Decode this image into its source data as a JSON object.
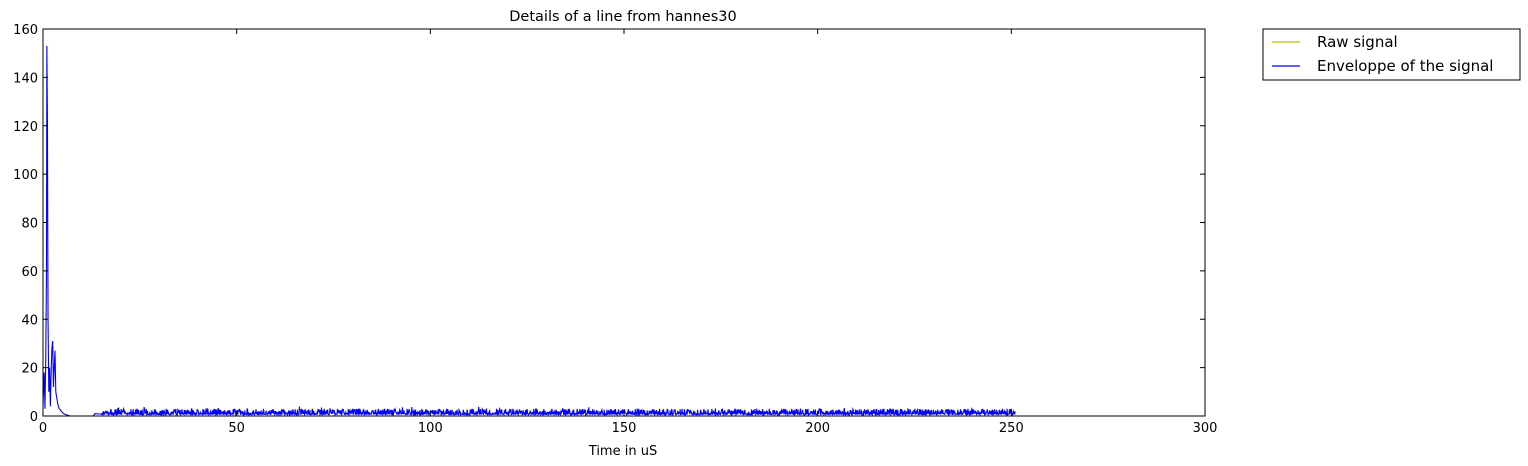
{
  "chart_data": {
    "type": "line",
    "title": "Details of a line from hannes30",
    "xlabel": "Time in uS",
    "ylabel": "",
    "xlim": [
      0,
      300
    ],
    "ylim": [
      0,
      160
    ],
    "x_ticks": [
      0,
      50,
      100,
      150,
      200,
      250,
      300
    ],
    "y_ticks": [
      0,
      20,
      40,
      60,
      80,
      100,
      120,
      140,
      160
    ],
    "grid": false,
    "legend_position": "outside-top-right",
    "series": [
      {
        "name": "Raw signal",
        "color": "#bfbf00",
        "points": [
          [
            0,
            0
          ],
          [
            300,
            0
          ]
        ]
      },
      {
        "name": "Enveloppe of the signal",
        "color": "#0000ff",
        "points": [
          [
            0.0,
            5
          ],
          [
            0.3,
            18
          ],
          [
            0.5,
            3
          ],
          [
            0.7,
            22
          ],
          [
            0.9,
            60
          ],
          [
            1.0,
            153
          ],
          [
            1.15,
            120
          ],
          [
            1.3,
            40
          ],
          [
            1.5,
            10
          ],
          [
            1.7,
            20
          ],
          [
            1.9,
            4
          ],
          [
            2.1,
            18
          ],
          [
            2.3,
            28
          ],
          [
            2.5,
            31
          ],
          [
            2.7,
            12
          ],
          [
            2.9,
            20
          ],
          [
            3.1,
            27
          ],
          [
            3.3,
            10
          ],
          [
            3.5,
            8
          ],
          [
            3.8,
            5
          ],
          [
            4.2,
            3
          ],
          [
            4.7,
            2
          ],
          [
            5.3,
            1
          ],
          [
            6.0,
            0.5
          ],
          [
            7.0,
            0
          ],
          [
            10.0,
            0
          ],
          [
            13.0,
            0
          ],
          [
            13.4,
            1
          ],
          [
            15.0,
            1
          ],
          [
            16.0,
            2
          ],
          [
            17.0,
            1
          ],
          [
            18.0,
            2
          ],
          [
            20.0,
            1.5
          ],
          [
            22.0,
            2
          ],
          [
            24.0,
            1
          ],
          [
            26.0,
            2
          ],
          [
            28.0,
            1.5
          ],
          [
            30.0,
            2
          ],
          [
            32.0,
            1
          ],
          [
            34.0,
            2
          ],
          [
            36.0,
            1.5
          ],
          [
            38.0,
            2
          ],
          [
            40.0,
            1
          ],
          [
            43.0,
            2
          ],
          [
            45.0,
            1.5
          ],
          [
            48.0,
            2
          ],
          [
            50.0,
            1
          ],
          [
            53.0,
            2
          ],
          [
            55.0,
            1.5
          ],
          [
            58.0,
            2
          ],
          [
            60.0,
            1
          ],
          [
            62.0,
            2.5
          ],
          [
            65.0,
            2
          ],
          [
            68.0,
            2.5
          ],
          [
            70.0,
            2
          ],
          [
            72.0,
            3
          ],
          [
            75.0,
            2.5
          ],
          [
            78.0,
            2
          ],
          [
            80.0,
            1.5
          ],
          [
            82.0,
            2
          ],
          [
            85.0,
            1
          ],
          [
            88.0,
            2
          ],
          [
            90.0,
            1.5
          ],
          [
            93.0,
            2
          ],
          [
            95.0,
            1
          ],
          [
            98.0,
            2
          ],
          [
            100.0,
            1.5
          ],
          [
            103.0,
            2
          ],
          [
            105.0,
            1
          ],
          [
            108.0,
            2
          ],
          [
            110.0,
            1.5
          ],
          [
            113.0,
            2
          ],
          [
            115.0,
            1
          ],
          [
            118.0,
            2
          ],
          [
            120.0,
            1.5
          ],
          [
            123.0,
            2
          ],
          [
            125.0,
            1
          ],
          [
            128.0,
            2
          ],
          [
            130.0,
            1.5
          ],
          [
            133.0,
            2
          ],
          [
            135.0,
            1
          ],
          [
            138.0,
            2
          ],
          [
            140.0,
            1.5
          ],
          [
            143.0,
            2
          ],
          [
            145.0,
            1
          ],
          [
            148.0,
            2
          ],
          [
            150.0,
            1.5
          ],
          [
            153.0,
            2
          ],
          [
            155.0,
            1
          ],
          [
            158.0,
            2
          ],
          [
            160.0,
            1.5
          ],
          [
            163.0,
            2
          ],
          [
            165.0,
            1
          ],
          [
            168.0,
            2
          ],
          [
            170.0,
            1.5
          ],
          [
            173.0,
            2
          ],
          [
            175.0,
            1
          ],
          [
            178.0,
            2
          ],
          [
            180.0,
            1.5
          ],
          [
            183.0,
            2
          ],
          [
            185.0,
            1
          ],
          [
            188.0,
            2
          ],
          [
            190.0,
            1.5
          ],
          [
            193.0,
            2
          ],
          [
            195.0,
            1
          ],
          [
            198.0,
            2
          ],
          [
            200.0,
            1.5
          ],
          [
            203.0,
            2
          ],
          [
            205.0,
            1
          ],
          [
            208.0,
            2
          ],
          [
            210.0,
            1.5
          ],
          [
            213.0,
            2
          ],
          [
            215.0,
            1
          ],
          [
            218.0,
            2
          ],
          [
            220.0,
            1.5
          ],
          [
            223.0,
            2
          ],
          [
            225.0,
            1
          ],
          [
            228.0,
            2
          ],
          [
            230.0,
            1.5
          ],
          [
            233.0,
            2
          ],
          [
            235.0,
            1
          ],
          [
            238.0,
            2
          ],
          [
            240.0,
            1.5
          ],
          [
            243.0,
            2.5
          ],
          [
            244.5,
            3.5
          ],
          [
            246.0,
            1.5
          ],
          [
            248.0,
            2
          ],
          [
            250.0,
            1.5
          ],
          [
            251.0,
            1
          ]
        ],
        "noise_band": {
          "x_start": 15,
          "x_end": 251,
          "amplitude": 2,
          "spike_amplitude": 4
        }
      }
    ]
  }
}
